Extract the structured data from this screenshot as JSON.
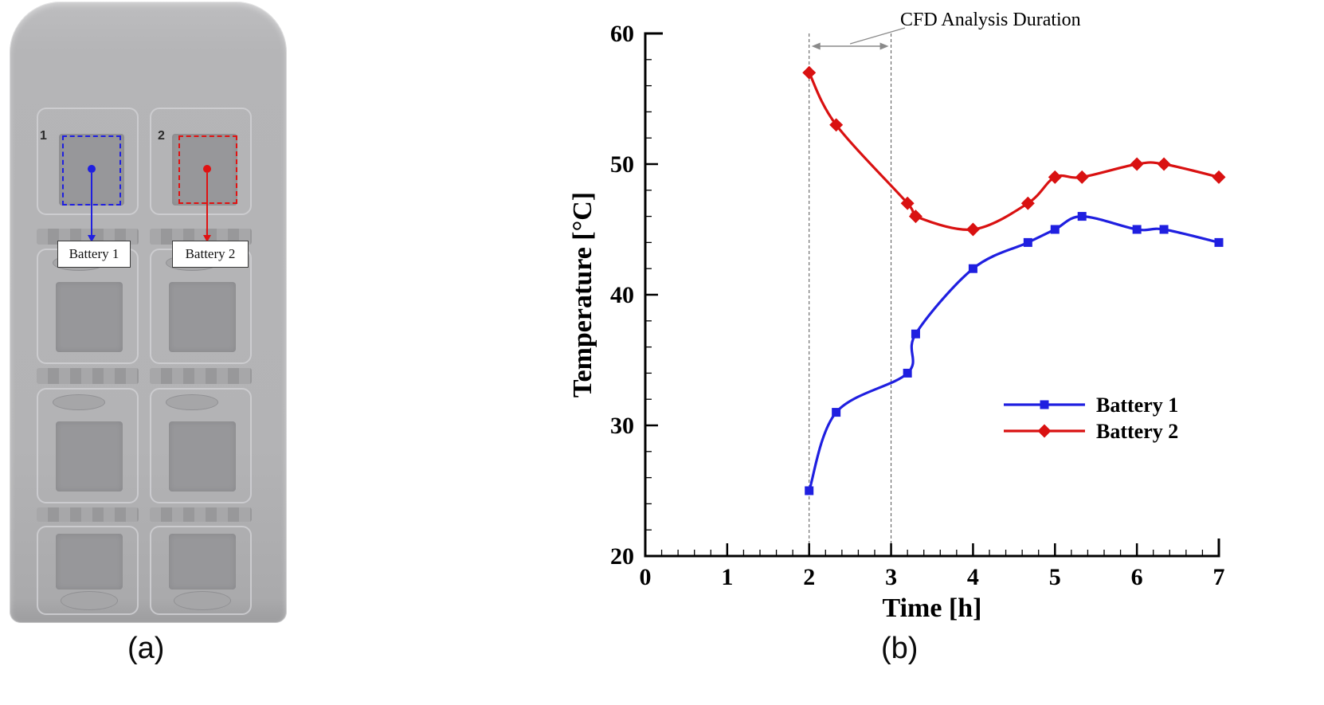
{
  "figure": {
    "panel_a_label": "(a)",
    "panel_b_label": "(b)"
  },
  "panel_a": {
    "roi1": {
      "number": "1",
      "color": "#1f1fe0"
    },
    "roi2": {
      "number": "2",
      "color": "#e01212"
    },
    "battery1_label": "Battery 1",
    "battery2_label": "Battery 2"
  },
  "chart_data": {
    "type": "line",
    "title": "",
    "xlabel": "Time [h]",
    "ylabel": "Temperature [°C]",
    "xlim": [
      0,
      7
    ],
    "ylim": [
      20,
      60
    ],
    "x_major_ticks": [
      0,
      1,
      2,
      3,
      4,
      5,
      6,
      7
    ],
    "y_major_ticks": [
      20,
      30,
      40,
      50,
      60
    ],
    "x_minor_step": 0.2,
    "y_minor_step": 2,
    "grid": false,
    "legend_position": "middle-right",
    "annotation": {
      "text": "CFD Analysis Duration",
      "x_start": 2,
      "x_end": 3
    },
    "series": [
      {
        "name": "Battery 1",
        "color": "#1f1fe0",
        "marker": "square",
        "x": [
          2,
          2.33,
          3.2,
          3.3,
          4,
          4.67,
          5,
          5.33,
          6,
          6.33,
          7
        ],
        "y": [
          25,
          31,
          34,
          37,
          42,
          44,
          45,
          46,
          45,
          45,
          44
        ]
      },
      {
        "name": "Battery 2",
        "color": "#d91111",
        "marker": "diamond",
        "x": [
          2,
          2.33,
          3.2,
          3.3,
          4,
          4.67,
          5,
          5.33,
          6,
          6.33,
          7
        ],
        "y": [
          57,
          53,
          47,
          46,
          45,
          47,
          49,
          49,
          50,
          50,
          49
        ]
      }
    ]
  }
}
